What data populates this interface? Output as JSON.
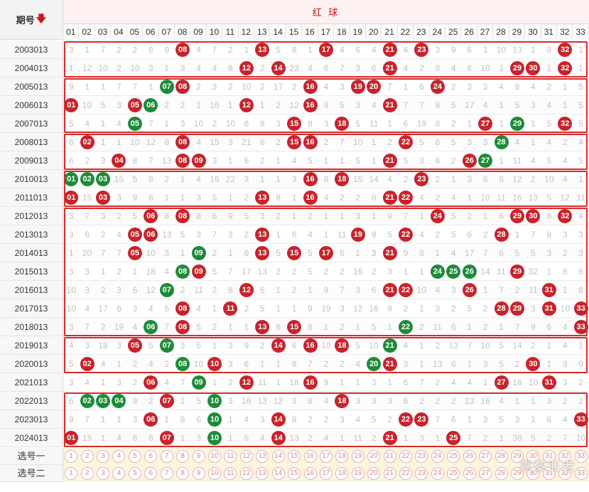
{
  "header": {
    "period_label": "期号",
    "sort_icon": "down-arrow-icon",
    "group_title": "红 球"
  },
  "columns": [
    "01",
    "02",
    "03",
    "04",
    "05",
    "06",
    "07",
    "08",
    "09",
    "10",
    "11",
    "12",
    "13",
    "14",
    "15",
    "16",
    "17",
    "18",
    "19",
    "20",
    "21",
    "22",
    "23",
    "24",
    "25",
    "26",
    "27",
    "28",
    "29",
    "30",
    "31",
    "32",
    "33"
  ],
  "colors": {
    "red_ball": "#c8232c",
    "green_ball": "#1e8b3a",
    "group_border": "#d62a2a",
    "header_red": "#d0141c"
  },
  "rows": [
    {
      "period": "2003013",
      "cells": [
        "3",
        "1",
        "7",
        "2",
        "2",
        "8",
        "9",
        "R:08",
        "4",
        "7",
        "2",
        "1",
        "R:13",
        "5",
        "8",
        "1",
        "R:17",
        "4",
        "6",
        "4",
        "R:21",
        "4",
        "R:23",
        "3",
        "9",
        "6",
        "1",
        "10",
        "13",
        "1",
        "8",
        "R:32",
        "1"
      ]
    },
    {
      "period": "2004013",
      "cells": [
        "1",
        "12",
        "10",
        "2",
        "10",
        "3",
        "1",
        "3",
        "4",
        "4",
        "8",
        "R:12",
        "2",
        "R:14",
        "23",
        "4",
        "6",
        "7",
        "3",
        "6",
        "R:21",
        "4",
        "2",
        "8",
        "4",
        "6",
        "10",
        "1",
        "R:29",
        "R:30",
        "1",
        "R:32",
        "1"
      ]
    },
    {
      "period": "2005013",
      "cells": [
        "9",
        "1",
        "1",
        "7",
        "7",
        "1",
        "G:07",
        "R:08",
        "2",
        "3",
        "2",
        "10",
        "2",
        "17",
        "2",
        "R:16",
        "4",
        "3",
        "R:19",
        "R:20",
        "7",
        "1",
        "6",
        "R:24",
        "2",
        "3",
        "3",
        "4",
        "8",
        "4",
        "2",
        "1",
        "5"
      ]
    },
    {
      "period": "2006013",
      "cells": [
        "R:01",
        "10",
        "5",
        "3",
        "R:05",
        "G:06",
        "2",
        "2",
        "1",
        "16",
        "1",
        "R:12",
        "1",
        "2",
        "12",
        "R:16",
        "9",
        "5",
        "3",
        "4",
        "R:21",
        "7",
        "7",
        "8",
        "5",
        "17",
        "4",
        "1",
        "5",
        "3",
        "4",
        "1",
        "5"
      ]
    },
    {
      "period": "2007013",
      "cells": [
        "5",
        "4",
        "1",
        "4",
        "G:05",
        "7",
        "1",
        "3",
        "10",
        "2",
        "10",
        "6",
        "9",
        "3",
        "R:15",
        "8",
        "3",
        "R:18",
        "5",
        "11",
        "1",
        "6",
        "19",
        "8",
        "2",
        "1",
        "R:27",
        "1",
        "G:29",
        "1",
        "5",
        "R:32",
        "5"
      ]
    },
    {
      "period": "2008013",
      "cells": [
        "6",
        "R:02",
        "1",
        "1",
        "10",
        "12",
        "8",
        "R:08",
        "4",
        "15",
        "3",
        "21",
        "6",
        "2",
        "R:15",
        "R:16",
        "2",
        "7",
        "10",
        "1",
        "2",
        "R:22",
        "5",
        "8",
        "5",
        "3",
        "3",
        "G:28",
        "4",
        "1",
        "4",
        "2",
        "4"
      ]
    },
    {
      "period": "2009013",
      "cells": [
        "6",
        "2",
        "3",
        "R:04",
        "8",
        "7",
        "13",
        "R:08",
        "R:09",
        "3",
        "1",
        "6",
        "2",
        "1",
        "4",
        "5",
        "1",
        "1",
        "5",
        "1",
        "R:21",
        "5",
        "3",
        "6",
        "2",
        "R:26",
        "G:27",
        "1",
        "11",
        "4",
        "5",
        "4",
        "5"
      ]
    },
    {
      "period": "2010013",
      "cells": [
        "G:01",
        "G:02",
        "G:03",
        "15",
        "5",
        "8",
        "2",
        "1",
        "4",
        "16",
        "22",
        "3",
        "1",
        "1",
        "3",
        "R:16",
        "8",
        "R:18",
        "15",
        "14",
        "4",
        "2",
        "R:23",
        "2",
        "1",
        "3",
        "6",
        "6",
        "12",
        "2",
        "10",
        "4",
        "1"
      ]
    },
    {
      "period": "2011013",
      "cells": [
        "R:01",
        "15",
        "R:03",
        "3",
        "9",
        "8",
        "1",
        "1",
        "3",
        "5",
        "1",
        "2",
        "R:13",
        "8",
        "1",
        "R:16",
        "4",
        "2",
        "2",
        "8",
        "R:21",
        "R:22",
        "4",
        "2",
        "4",
        "1",
        "10",
        "11",
        "16",
        "13",
        "5",
        "12",
        "11"
      ]
    },
    {
      "period": "2012013",
      "cells": [
        "3",
        "7",
        "3",
        "2",
        "5",
        "R:06",
        "8",
        "R:08",
        "8",
        "6",
        "9",
        "5",
        "3",
        "2",
        "1",
        "2",
        "1",
        "1",
        "3",
        "1",
        "9",
        "7",
        "1",
        "R:24",
        "5",
        "2",
        "1",
        "6",
        "R:29",
        "R:30",
        "8",
        "R:32",
        "4"
      ]
    },
    {
      "period": "2013013",
      "cells": [
        "3",
        "6",
        "2",
        "4",
        "R:05",
        "R:06",
        "13",
        "5",
        "3",
        "7",
        "3",
        "2",
        "R:13",
        "1",
        "6",
        "4",
        "1",
        "11",
        "R:19",
        "9",
        "5",
        "R:22",
        "4",
        "2",
        "5",
        "6",
        "2",
        "R:28",
        "1",
        "7",
        "8",
        "3",
        "3"
      ]
    },
    {
      "period": "2014013",
      "cells": [
        "1",
        "20",
        "7",
        "7",
        "R:05",
        "10",
        "3",
        "1",
        "G:09",
        "2",
        "1",
        "6",
        "R:13",
        "5",
        "R:15",
        "5",
        "R:17",
        "6",
        "1",
        "3",
        "R:21",
        "9",
        "8",
        "1",
        "4",
        "17",
        "7",
        "6",
        "5",
        "5",
        "3",
        "2",
        "3"
      ]
    },
    {
      "period": "2015013",
      "cells": [
        "3",
        "3",
        "1",
        "2",
        "1",
        "18",
        "4",
        "G:08",
        "R:09",
        "5",
        "7",
        "17",
        "13",
        "2",
        "2",
        "5",
        "2",
        "2",
        "16",
        "2",
        "3",
        "1",
        "1",
        "G:24",
        "G:25",
        "G:26",
        "14",
        "11",
        "R:29",
        "32",
        "1",
        "8",
        "6"
      ]
    },
    {
      "period": "2016013",
      "cells": [
        "10",
        "3",
        "2",
        "3",
        "6",
        "12",
        "G:07",
        "2",
        "11",
        "2",
        "8",
        "R:12",
        "5",
        "1",
        "2",
        "1",
        "9",
        "7",
        "3",
        "6",
        "R:21",
        "R:22",
        "10",
        "4",
        "3",
        "R:26",
        "1",
        "7",
        "2",
        "11",
        "R:31",
        "1",
        "8"
      ]
    },
    {
      "period": "2017013",
      "cells": [
        "10",
        "4",
        "17",
        "6",
        "3",
        "4",
        "5",
        "R:08",
        "4",
        "1",
        "R:11",
        "2",
        "5",
        "1",
        "1",
        "9",
        "19",
        "3",
        "12",
        "16",
        "8",
        "2",
        "1",
        "3",
        "2",
        "5",
        "2",
        "R:28",
        "R:29",
        "3",
        "R:31",
        "10",
        "R:33"
      ]
    },
    {
      "period": "2018013",
      "cells": [
        "3",
        "7",
        "2",
        "19",
        "4",
        "G:06",
        "7",
        "R:08",
        "5",
        "2",
        "1",
        "1",
        "R:13",
        "6",
        "R:15",
        "8",
        "1",
        "2",
        "1",
        "5",
        "1",
        "G:22",
        "2",
        "11",
        "6",
        "1",
        "2",
        "1",
        "7",
        "9",
        "6",
        "4",
        "R:33"
      ]
    },
    {
      "period": "2019013",
      "cells": [
        "4",
        "3",
        "18",
        "3",
        "R:05",
        "5",
        "G:07",
        "3",
        "5",
        "1",
        "3",
        "9",
        "2",
        "R:14",
        "6",
        "R:16",
        "10",
        "R:18",
        "5",
        "10",
        "G:21",
        "4",
        "1",
        "2",
        "13",
        "7",
        "10",
        "5",
        "14",
        "2",
        "1",
        "4",
        "1"
      ]
    },
    {
      "period": "2020013",
      "cells": [
        "5",
        "R:02",
        "4",
        "1",
        "2",
        "4",
        "2",
        "G:08",
        "10",
        "R:10",
        "3",
        "6",
        "1",
        "1",
        "9",
        "7",
        "2",
        "2",
        "4",
        "G:20",
        "R:21",
        "3",
        "1",
        "13",
        "6",
        "1",
        "3",
        "5",
        "2",
        "R:30",
        "1",
        "3",
        "9"
      ]
    },
    {
      "period": "2021013",
      "cells": [
        "3",
        "4",
        "1",
        "3",
        "2",
        "R:06",
        "4",
        "7",
        "G:09",
        "1",
        "2",
        "R:12",
        "11",
        "1",
        "18",
        "R:16",
        "9",
        "1",
        "1",
        "3",
        "1",
        "6",
        "7",
        "2",
        "4",
        "4",
        "1",
        "R:27",
        "18",
        "10",
        "R:31",
        "3",
        "2"
      ]
    },
    {
      "period": "2022013",
      "cells": [
        "6",
        "G:02",
        "G:03",
        "G:04",
        "9",
        "2",
        "R:07",
        "1",
        "5",
        "G:10",
        "3",
        "16",
        "13",
        "12",
        "3",
        "8",
        "4",
        "R:18",
        "3",
        "3",
        "3",
        "6",
        "2",
        "2",
        "2",
        "13",
        "16",
        "4",
        "1",
        "1",
        "3",
        "2",
        "2"
      ]
    },
    {
      "period": "2023013",
      "cells": [
        "9",
        "7",
        "1",
        "1",
        "3",
        "R:06",
        "1",
        "8",
        "6",
        "G:10",
        "1",
        "4",
        "3",
        "R:14",
        "8",
        "2",
        "2",
        "3",
        "4",
        "5",
        "2",
        "R:22",
        "R:23",
        "7",
        "6",
        "1",
        "3",
        "5",
        "3",
        "1",
        "6",
        "4",
        "R:33"
      ]
    },
    {
      "period": "2024013",
      "cells": [
        "R:01",
        "15",
        "1",
        "4",
        "6",
        "6",
        "R:07",
        "1",
        "3",
        "G:10",
        "1",
        "5",
        "4",
        "R:14",
        "13",
        "2",
        "4",
        "1",
        "11",
        "2",
        "R:21",
        "1",
        "3",
        "1",
        "R:25",
        "7",
        "2",
        "1",
        "38",
        "5",
        "2",
        "7",
        "10"
      ]
    }
  ],
  "pick_rows": [
    {
      "label": "选号一"
    },
    {
      "label": "选号二"
    }
  ],
  "watermark": "嘉黎亚老"
}
